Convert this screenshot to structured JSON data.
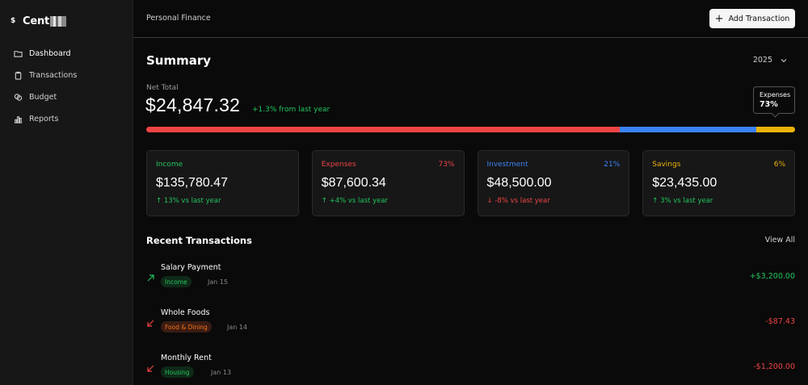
{
  "brand": {
    "name": "Cent"
  },
  "sidebar": {
    "items": [
      {
        "label": "Dashboard",
        "icon": "folder-icon",
        "active": true
      },
      {
        "label": "Transactions",
        "icon": "clipboard-icon"
      },
      {
        "label": "Budget",
        "icon": "coins-icon"
      },
      {
        "label": "Reports",
        "icon": "bar-chart-icon"
      }
    ]
  },
  "header": {
    "breadcrumb": "Personal Finance",
    "add_button": "Add Transaction"
  },
  "summary": {
    "title": "Summary",
    "year": "2025",
    "net_label": "Net Total",
    "net_value": "$24,847.32",
    "net_change": "+1.3% from last year",
    "tooltip": {
      "label": "Expenses",
      "value": "73%"
    },
    "bar": [
      {
        "name": "expenses",
        "fraction": 0.73,
        "color": "#ef4444"
      },
      {
        "name": "investment",
        "fraction": 0.21,
        "color": "#3b82f6"
      },
      {
        "name": "savings",
        "fraction": 0.06,
        "color": "#eab308"
      }
    ]
  },
  "cards": [
    {
      "label": "Income",
      "pct": "",
      "value": "$135,780.47",
      "change": "↑  13% vs last year",
      "label_color": "#22c55e",
      "change_color": "#22c55e"
    },
    {
      "label": "Expenses",
      "pct": "73%",
      "value": "$87,600.34",
      "change": "↑  +4% vs last year",
      "label_color": "#ef4444",
      "change_color": "#22c55e"
    },
    {
      "label": "Investment",
      "pct": "21%",
      "value": "$48,500.00",
      "change": "↓  -8% vs last year",
      "label_color": "#3b82f6",
      "change_color": "#ef4444"
    },
    {
      "label": "Savings",
      "pct": "6%",
      "value": "$23,435.00",
      "change": "↑  3% vs last year",
      "label_color": "#eab308",
      "change_color": "#22c55e"
    }
  ],
  "recent": {
    "title": "Recent Transactions",
    "view_all": "View All",
    "items": [
      {
        "name": "Salary Payment",
        "tag": "Income",
        "date": "Jan 15",
        "amount": "+$3,200.00",
        "direction": "up",
        "tag_bg": "#0f2a18",
        "tag_color": "#22c55e",
        "amount_color": "#22c55e"
      },
      {
        "name": "Whole Foods",
        "tag": "Food & Dining",
        "date": "Jan 14",
        "amount": "-$87.43",
        "direction": "down",
        "tag_bg": "#3a1c12",
        "tag_color": "#f97316",
        "amount_color": "#ef4444"
      },
      {
        "name": "Monthly Rent",
        "tag": "Housing",
        "date": "Jan 13",
        "amount": "-$1,200.00",
        "direction": "down",
        "tag_bg": "#0f2a18",
        "tag_color": "#22c55e",
        "amount_color": "#ef4444"
      }
    ]
  }
}
